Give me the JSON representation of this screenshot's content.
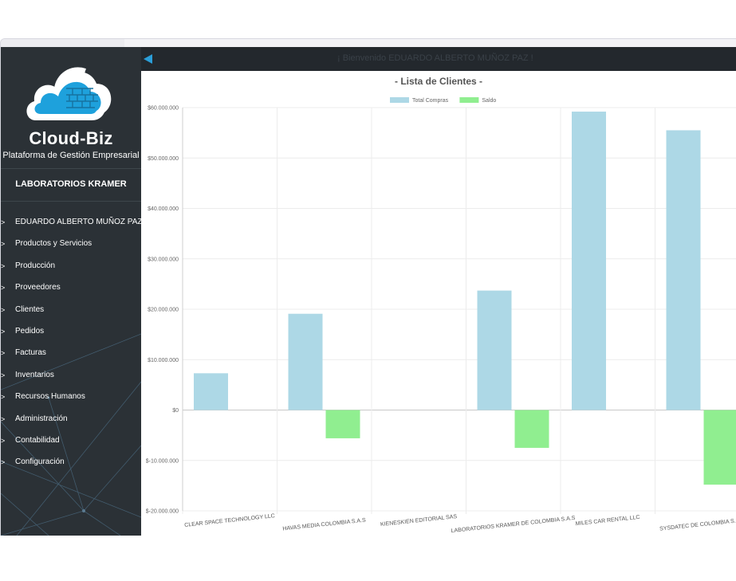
{
  "brand": {
    "name": "Cloud-Biz",
    "tagline": "Plataforma de Gestión Empresarial"
  },
  "company": "LABORATORIOS KRAMER",
  "topbar": {
    "welcome": "¡ Bienvenido EDUARDO ALBERTO MUÑOZ PAZ !"
  },
  "menu": [
    {
      "label": "EDUARDO ALBERTO MUÑOZ PAZ",
      "icon": "chevron-right-icon"
    },
    {
      "label": "Productos y Servicios",
      "icon": "chevron-right-icon"
    },
    {
      "label": "Producción",
      "icon": "chevron-right-icon"
    },
    {
      "label": "Proveedores",
      "icon": "chevron-right-icon"
    },
    {
      "label": "Clientes",
      "icon": "chevron-right-icon"
    },
    {
      "label": "Pedidos",
      "icon": "chevron-right-icon"
    },
    {
      "label": "Facturas",
      "icon": "chevron-right-icon"
    },
    {
      "label": "Inventarios",
      "icon": "chevron-right-icon"
    },
    {
      "label": "Recursos Humanos",
      "icon": "chevron-right-icon"
    },
    {
      "label": "Administración",
      "icon": "chevron-right-icon"
    },
    {
      "label": "Contabilidad",
      "icon": "chevron-right-icon"
    },
    {
      "label": "Configuración",
      "icon": "chevron-right-icon"
    }
  ],
  "colors": {
    "sidebar": "#2b3136",
    "topbar": "#23282d",
    "accent": "#2b9ed8",
    "logo_cloud": "#1ea1dc",
    "total_compras": "#add8e6",
    "saldo": "#90ee90"
  },
  "chart_data": {
    "type": "bar",
    "title": "- Lista de Clientes -",
    "categories": [
      "CLEAR SPACE TECHNOLOGY LLC",
      "HAVAS MEDIA COLOMBIA S.A.S",
      "KIENESKIEN EDITORIAL SAS",
      "LABORATORIOS KRAMER DE COLOMBIA S.A.S",
      "MILES CAR RENTAL LLC",
      "SYSDATEC DE COLOMBIA S.A.S"
    ],
    "series": [
      {
        "name": "Total Compras",
        "color": "#add8e6",
        "values": [
          7300000,
          19100000,
          0,
          23700000,
          59200000,
          55500000
        ]
      },
      {
        "name": "Saldo",
        "color": "#90ee90",
        "values": [
          0,
          -5600000,
          0,
          -7500000,
          0,
          -14800000
        ]
      }
    ],
    "ylim": [
      -20000000,
      60000000
    ],
    "yticks": [
      60000000,
      50000000,
      40000000,
      30000000,
      20000000,
      10000000,
      0,
      -10000000,
      -20000000
    ],
    "ytick_labels": [
      "$60.000.000",
      "$50.000.000",
      "$40.000.000",
      "$30.000.000",
      "$20.000.000",
      "$10.000.000",
      "$0",
      "$-10.000.000",
      "$-20.000.000"
    ],
    "grid": true,
    "legend": "top-center"
  }
}
